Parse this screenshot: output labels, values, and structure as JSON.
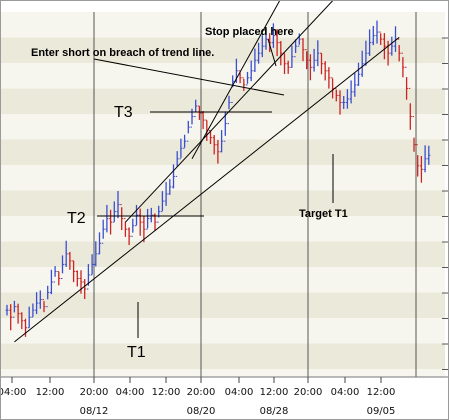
{
  "colors": {
    "band_light": "#f7f6ee",
    "band_dark": "#ebe9d9",
    "up": "#3a4fd0",
    "down": "#cc2222",
    "trend": "#000000",
    "grid": "#555555"
  },
  "chart_data": {
    "type": "bar",
    "title": "",
    "subtitle": "",
    "xlabel": "",
    "ylabel": "",
    "candle_style": "OHLC bars (blue up, red down)",
    "x_ticks": [
      {
        "time": "04:00",
        "date": ""
      },
      {
        "time": "12:00",
        "date": ""
      },
      {
        "time": "20:00",
        "date": "08/12"
      },
      {
        "time": "04:00",
        "date": ""
      },
      {
        "time": "12:00",
        "date": ""
      },
      {
        "time": "20:00",
        "date": "08/20"
      },
      {
        "time": "04:00",
        "date": ""
      },
      {
        "time": "12:00",
        "date": "08/28"
      },
      {
        "time": "20:00",
        "date": ""
      },
      {
        "time": "04:00",
        "date": ""
      },
      {
        "time": "12:00",
        "date": "09/05"
      }
    ],
    "session_separators": [
      "08/12",
      "08/20",
      "08/28",
      "09/05"
    ],
    "grid": "horizontal alternating bands + vertical session lines",
    "series": [
      {
        "values": [
          [
            0,
            0.17
          ],
          [
            1,
            0.15
          ],
          [
            2,
            0.18
          ],
          [
            3,
            0.16
          ],
          [
            4,
            0.14
          ],
          [
            5,
            0.12
          ],
          [
            6,
            0.15
          ],
          [
            7,
            0.17
          ],
          [
            8,
            0.19
          ],
          [
            9,
            0.2
          ],
          [
            10,
            0.18
          ],
          [
            11,
            0.22
          ],
          [
            12,
            0.25
          ],
          [
            13,
            0.28
          ],
          [
            14,
            0.26
          ],
          [
            15,
            0.3
          ],
          [
            16,
            0.33
          ],
          [
            17,
            0.31
          ],
          [
            18,
            0.28
          ],
          [
            19,
            0.26
          ],
          [
            20,
            0.25
          ],
          [
            21,
            0.23
          ],
          [
            22,
            0.27
          ],
          [
            23,
            0.3
          ],
          [
            24,
            0.33
          ],
          [
            25,
            0.36
          ],
          [
            26,
            0.4
          ],
          [
            27,
            0.43
          ],
          [
            28,
            0.42
          ],
          [
            29,
            0.45
          ],
          [
            30,
            0.47
          ],
          [
            31,
            0.43
          ],
          [
            32,
            0.4
          ],
          [
            33,
            0.38
          ],
          [
            34,
            0.41
          ],
          [
            35,
            0.44
          ],
          [
            36,
            0.42
          ],
          [
            37,
            0.4
          ],
          [
            38,
            0.43
          ],
          [
            39,
            0.44
          ],
          [
            40,
            0.42
          ],
          [
            41,
            0.45
          ],
          [
            42,
            0.48
          ],
          [
            43,
            0.5
          ],
          [
            44,
            0.52
          ],
          [
            45,
            0.55
          ],
          [
            46,
            0.6
          ],
          [
            47,
            0.63
          ],
          [
            48,
            0.65
          ],
          [
            49,
            0.69
          ],
          [
            50,
            0.72
          ],
          [
            51,
            0.75
          ],
          [
            52,
            0.73
          ],
          [
            53,
            0.71
          ],
          [
            54,
            0.68
          ],
          [
            55,
            0.66
          ],
          [
            56,
            0.64
          ],
          [
            57,
            0.62
          ],
          [
            58,
            0.65
          ],
          [
            59,
            0.7
          ],
          [
            60,
            0.76
          ],
          [
            61,
            0.82
          ],
          [
            62,
            0.85
          ],
          [
            63,
            0.83
          ],
          [
            64,
            0.81
          ],
          [
            65,
            0.83
          ],
          [
            66,
            0.85
          ],
          [
            67,
            0.88
          ],
          [
            68,
            0.9
          ],
          [
            69,
            0.92
          ],
          [
            70,
            0.94
          ],
          [
            71,
            0.93
          ],
          [
            72,
            0.95
          ],
          [
            73,
            0.93
          ],
          [
            74,
            0.9
          ],
          [
            75,
            0.87
          ],
          [
            76,
            0.86
          ],
          [
            77,
            0.89
          ],
          [
            78,
            0.92
          ],
          [
            79,
            0.94
          ],
          [
            80,
            0.91
          ],
          [
            81,
            0.88
          ],
          [
            82,
            0.86
          ],
          [
            83,
            0.88
          ],
          [
            84,
            0.9
          ],
          [
            85,
            0.87
          ],
          [
            86,
            0.85
          ],
          [
            87,
            0.83
          ],
          [
            88,
            0.8
          ],
          [
            89,
            0.78
          ],
          [
            90,
            0.76
          ],
          [
            91,
            0.76
          ],
          [
            92,
            0.77
          ],
          [
            93,
            0.79
          ],
          [
            94,
            0.81
          ],
          [
            95,
            0.84
          ],
          [
            96,
            0.87
          ],
          [
            97,
            0.9
          ],
          [
            98,
            0.93
          ],
          [
            99,
            0.95
          ],
          [
            100,
            0.96
          ],
          [
            101,
            0.94
          ],
          [
            102,
            0.92
          ],
          [
            103,
            0.9
          ],
          [
            104,
            0.92
          ],
          [
            105,
            0.94
          ],
          [
            106,
            0.9
          ],
          [
            107,
            0.86
          ],
          [
            108,
            0.8
          ],
          [
            109,
            0.72
          ],
          [
            110,
            0.64
          ],
          [
            111,
            0.58
          ],
          [
            112,
            0.57
          ],
          [
            113,
            0.6
          ],
          [
            114,
            0.61
          ]
        ]
      }
    ],
    "trend_lines": [
      {
        "label": "T1",
        "from": [
          2,
          0.08
        ],
        "to": [
          106,
          0.945
        ]
      },
      {
        "label": "T2",
        "from": [
          32,
          0.42
        ],
        "to": [
          97,
          1.15
        ]
      },
      {
        "label": "T3",
        "from": [
          50,
          0.6
        ],
        "to": [
          79,
          1.15
        ]
      }
    ],
    "annotations": [
      {
        "id": "stop",
        "text": "Stop placed here"
      },
      {
        "id": "entry",
        "text": "Enter short on breach of trend line."
      },
      {
        "id": "t3",
        "text": "T3"
      },
      {
        "id": "t2",
        "text": "T2"
      },
      {
        "id": "target",
        "text": "Target T1"
      },
      {
        "id": "t1",
        "text": "T1"
      }
    ]
  }
}
